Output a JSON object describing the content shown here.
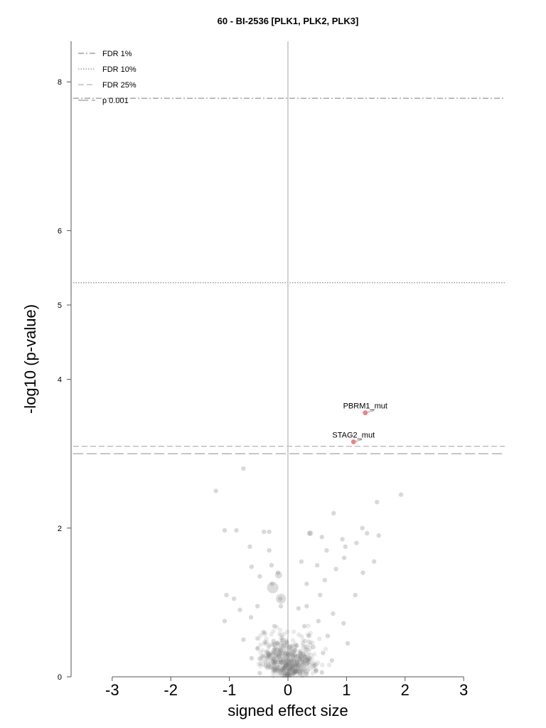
{
  "chart_data": {
    "type": "scatter",
    "title": "60 - BI-2536 [PLK1, PLK2, PLK3]",
    "xlabel": "signed effect size",
    "ylabel": "-log10 (p-value)",
    "xlim": [
      -3.0,
      3.7
    ],
    "ylim": [
      0,
      8.6
    ],
    "x_ticks": [
      "-3",
      "-2",
      "-1",
      "0",
      "1",
      "2",
      "3"
    ],
    "y_ticks": [
      "0",
      "2",
      "4",
      "5",
      "6",
      "8"
    ],
    "grid": false,
    "legend_position": "top-left",
    "thresholds": [
      {
        "name": "FDR 1%",
        "y": 7.78,
        "style": "dashdot",
        "color": "#8c8c8c"
      },
      {
        "name": "FDR 10%",
        "y": 5.3,
        "style": "dotted",
        "color": "#8c8c8c"
      },
      {
        "name": "FDR 25%",
        "y": 3.1,
        "style": "dashed",
        "color": "#b4b4b4"
      },
      {
        "name": "p 0.001",
        "y": 3.0,
        "style": "longdash",
        "color": "#9a9a9a"
      }
    ],
    "highlighted": [
      {
        "label": "PBRM1_mut",
        "x": 1.32,
        "y": 3.55,
        "color": "#f08080"
      },
      {
        "label": "STAG2_mut",
        "x": 1.12,
        "y": 3.16,
        "color": "#f08080"
      }
    ],
    "points": [
      {
        "x": -1.23,
        "y": 2.5
      },
      {
        "x": -0.76,
        "y": 2.8
      },
      {
        "x": 1.93,
        "y": 2.45
      },
      {
        "x": 1.52,
        "y": 2.35
      },
      {
        "x": 0.78,
        "y": 2.2
      },
      {
        "x": 1.27,
        "y": 2.0
      },
      {
        "x": 0.37,
        "y": 1.93
      },
      {
        "x": -0.41,
        "y": 1.95
      },
      {
        "x": -0.32,
        "y": 1.95
      },
      {
        "x": -0.88,
        "y": 1.97
      },
      {
        "x": -1.08,
        "y": 1.97
      },
      {
        "x": 1.55,
        "y": 1.9
      },
      {
        "x": 1.35,
        "y": 1.93
      },
      {
        "x": 0.58,
        "y": 1.88
      },
      {
        "x": 0.93,
        "y": 1.85
      },
      {
        "x": 1.17,
        "y": 1.8
      },
      {
        "x": 0.98,
        "y": 1.75
      },
      {
        "x": -0.32,
        "y": 1.7
      },
      {
        "x": -0.65,
        "y": 1.75
      },
      {
        "x": 0.66,
        "y": 1.7
      },
      {
        "x": 0.96,
        "y": 1.6
      },
      {
        "x": 1.47,
        "y": 1.55
      },
      {
        "x": 0.23,
        "y": 1.55
      },
      {
        "x": -0.28,
        "y": 1.5
      },
      {
        "x": -0.62,
        "y": 1.48
      },
      {
        "x": 0.5,
        "y": 1.5
      },
      {
        "x": 0.82,
        "y": 1.45
      },
      {
        "x": 1.28,
        "y": 1.4
      },
      {
        "x": -0.17,
        "y": 1.4
      },
      {
        "x": -0.48,
        "y": 1.35
      },
      {
        "x": 0.63,
        "y": 1.3
      },
      {
        "x": 0.32,
        "y": 1.25
      },
      {
        "x": -0.27,
        "y": 1.25
      },
      {
        "x": -1.05,
        "y": 1.1
      },
      {
        "x": -0.92,
        "y": 1.05
      },
      {
        "x": -0.13,
        "y": 1.05
      },
      {
        "x": 1.15,
        "y": 1.1
      },
      {
        "x": 0.55,
        "y": 1.1
      },
      {
        "x": 0.32,
        "y": 0.95
      },
      {
        "x": -0.52,
        "y": 0.95
      },
      {
        "x": -0.82,
        "y": 0.9
      },
      {
        "x": -0.12,
        "y": 0.95
      },
      {
        "x": 0.18,
        "y": 0.92
      },
      {
        "x": 0.77,
        "y": 0.85
      },
      {
        "x": -0.63,
        "y": 0.8
      },
      {
        "x": -1.08,
        "y": 0.75
      },
      {
        "x": 0.52,
        "y": 0.75
      },
      {
        "x": 0.95,
        "y": 0.72
      },
      {
        "x": -0.23,
        "y": 0.68
      },
      {
        "x": 0.28,
        "y": 0.68
      },
      {
        "x": -0.42,
        "y": 0.6
      },
      {
        "x": 0.36,
        "y": 0.55
      },
      {
        "x": 0.68,
        "y": 0.55
      },
      {
        "x": 1.02,
        "y": 0.45
      },
      {
        "x": -0.76,
        "y": 0.5
      },
      {
        "x": -0.18,
        "y": 0.45
      },
      {
        "x": 0.15,
        "y": 0.42
      },
      {
        "x": 0.43,
        "y": 0.4
      },
      {
        "x": -0.52,
        "y": 0.38
      },
      {
        "x": 0.6,
        "y": 0.32
      },
      {
        "x": -0.33,
        "y": 0.3
      },
      {
        "x": 0.27,
        "y": 0.28
      },
      {
        "x": -0.62,
        "y": 0.25
      },
      {
        "x": 0.75,
        "y": 0.22
      },
      {
        "x": -0.12,
        "y": 0.2
      },
      {
        "x": 0.07,
        "y": 0.18
      },
      {
        "x": -0.38,
        "y": 0.15
      },
      {
        "x": 0.45,
        "y": 0.15
      },
      {
        "x": -0.22,
        "y": 0.1
      },
      {
        "x": 0.18,
        "y": 0.08
      },
      {
        "x": -0.05,
        "y": 0.05
      },
      {
        "x": 0.32,
        "y": 0.04
      },
      {
        "x": -0.48,
        "y": 0.05
      },
      {
        "x": 0.58,
        "y": 0.06
      }
    ],
    "bubbles": [
      {
        "x": -0.16,
        "y": 1.37,
        "r": 5
      },
      {
        "x": -0.26,
        "y": 1.2,
        "r": 8
      },
      {
        "x": -0.12,
        "y": 1.05,
        "r": 7
      },
      {
        "x": 0.38,
        "y": 1.93,
        "r": 4
      }
    ],
    "cloud_seed": 7,
    "cloud_count": 520
  }
}
